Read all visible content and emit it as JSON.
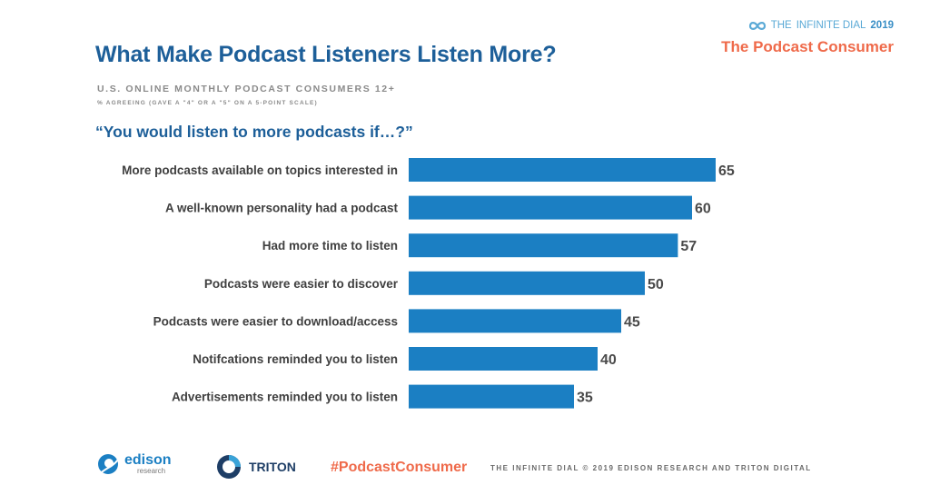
{
  "header": {
    "title": "What Make Podcast Listeners Listen More?",
    "subtitle": "U.S. ONLINE MONTHLY PODCAST CONSUMERS 12+",
    "note": "% AGREEING (GAVE A \"4\" OR A \"5\" ON A 5-POINT SCALE)",
    "question": "“You would listen to more podcasts if…?”"
  },
  "brand": {
    "prefix": "THE",
    "name_light": "INFINITE DIAL",
    "year": "2019",
    "subtitle": "The Podcast Consumer",
    "icon": "infinity-icon"
  },
  "chart_data": {
    "type": "bar",
    "orientation": "horizontal",
    "categories": [
      "More podcasts available on topics interested in",
      "A well-known personality had a podcast",
      "Had more time to listen",
      "Podcasts were easier to discover",
      "Podcasts were easier to download/access",
      "Notifcations reminded you to listen",
      "Advertisements reminded you to listen"
    ],
    "values": [
      65,
      60,
      57,
      50,
      45,
      40,
      35
    ],
    "bar_color": "#1b7fc3",
    "grid": false,
    "legend": "none",
    "data_labels": true
  },
  "footer": {
    "edison_name": "edison",
    "edison_sub": "research",
    "triton_name": "TRITON",
    "hashtag": "#PodcastConsumer",
    "credit": "THE INFINITE DIAL   © 2019 EDISON RESEARCH AND TRITON DIGITAL"
  },
  "colors": {
    "title": "#1d5f99",
    "accent": "#ef6a4a",
    "bar": "#1b7fc3"
  }
}
